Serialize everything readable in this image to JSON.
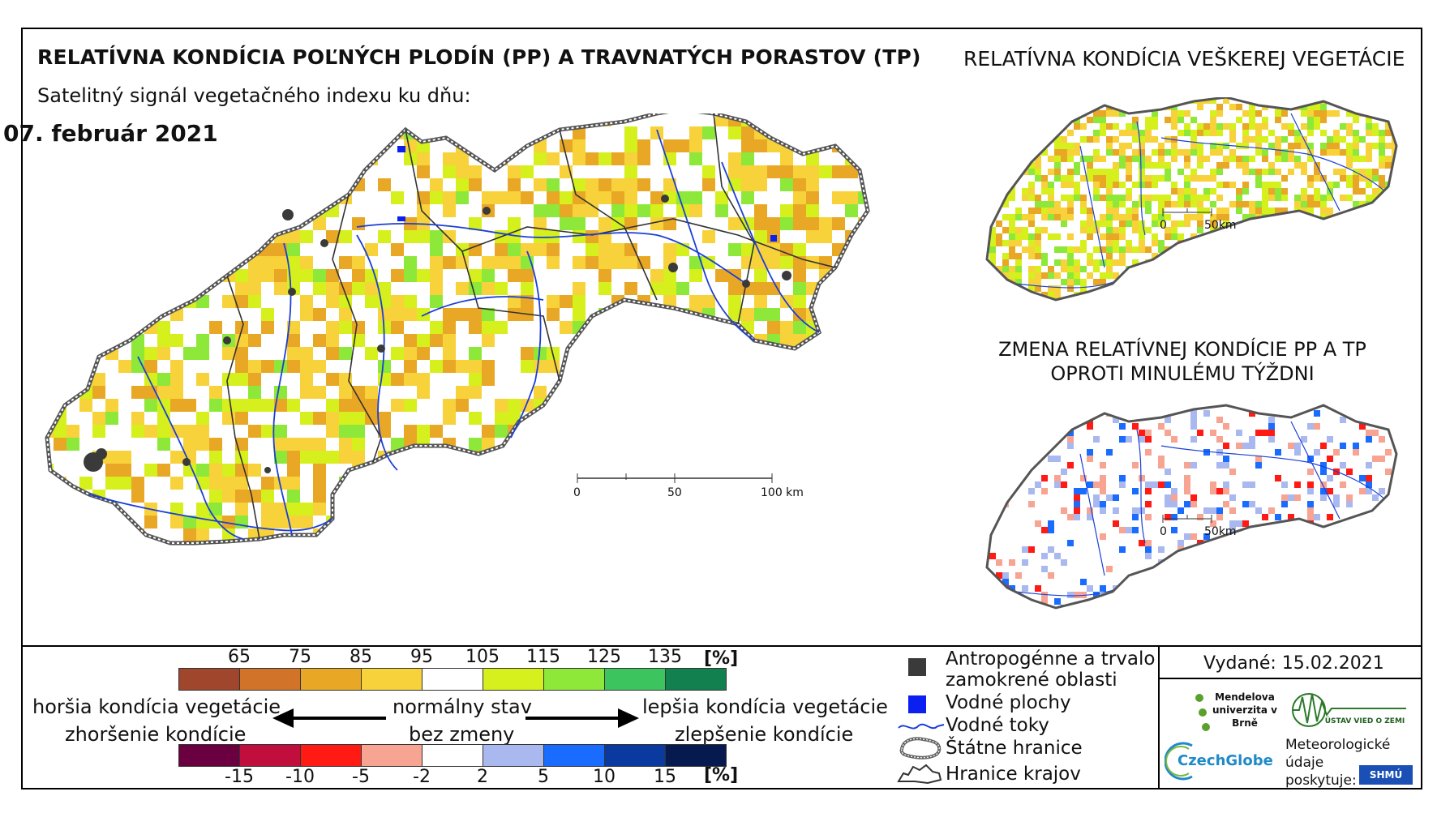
{
  "title_main": "RELATÍVNA KONDÍCIA POĽNÝCH PLODÍN (PP) A TRAVNATÝCH PORASTOV (TP)",
  "subtitle": "Satelitný signál vegetačného indexu ku dňu:",
  "date": "07. február 2021",
  "title_right": "RELATÍVNA KONDÍCIA VEŠKEREJ VEGETÁCIE",
  "title_change_1": "ZMENA RELATÍVNEJ KONDÍCIE PP A TP",
  "title_change_2": "OPROTI MINULÉMU TÝŽDNI",
  "scale_main": {
    "s0": "0",
    "s1": "50",
    "s2": "100 km"
  },
  "scale_small": {
    "s0": "0",
    "s1": "50km"
  },
  "legend": {
    "top_ticks": [
      "65",
      "75",
      "85",
      "95",
      "105",
      "115",
      "125",
      "135"
    ],
    "top_unit": "[%]",
    "top_colors": [
      "#a0462d",
      "#d1742a",
      "#e8a825",
      "#f8d23a",
      "#ffffff",
      "#d5f01d",
      "#8ee83a",
      "#3cc45e",
      "#13804f"
    ],
    "bottom_ticks": [
      "-15",
      "-10",
      "-5",
      "-2",
      "2",
      "5",
      "10",
      "15"
    ],
    "bottom_unit": "[%]",
    "bottom_colors": [
      "#6b0040",
      "#c00f3c",
      "#ff1a14",
      "#f7a493",
      "#ffffff",
      "#a9b9f0",
      "#1a6cff",
      "#0a3aa0",
      "#061a50"
    ],
    "left_line1": "horšia kondícia vegetácie",
    "left_line2": "zhoršenie kondície",
    "center_line1": "normálny stav",
    "center_line2": "bez zmeny",
    "right_line1": "lepšia kondícia vegetácie",
    "right_line2": "zlepšenie kondície"
  },
  "symbols": {
    "anthropogenic_1": "Antropogénne a trvalo",
    "anthropogenic_2": "zamokrené oblasti",
    "water_bodies": "Vodné plochy",
    "rivers": "Vodné toky",
    "state_border": "Štátne hranice",
    "region_border": "Hranice krajov"
  },
  "issued": "Vydané: 15.02.2021",
  "logos": {
    "mendel": "Mendelova univerzita v Brně",
    "uvoz": "ÚSTAV VIED O ZEMI",
    "czechglobe": "CzechGlobe",
    "meteo_1": "Meteorologické",
    "meteo_2": "údaje",
    "meteo_3": "poskytuje:",
    "shmu": "SHMÚ"
  },
  "colors": {
    "anthropogenic": "#3a3a3a",
    "water": "#0b1ff0",
    "river": "#1a3fd6",
    "region_border": "#333333"
  }
}
